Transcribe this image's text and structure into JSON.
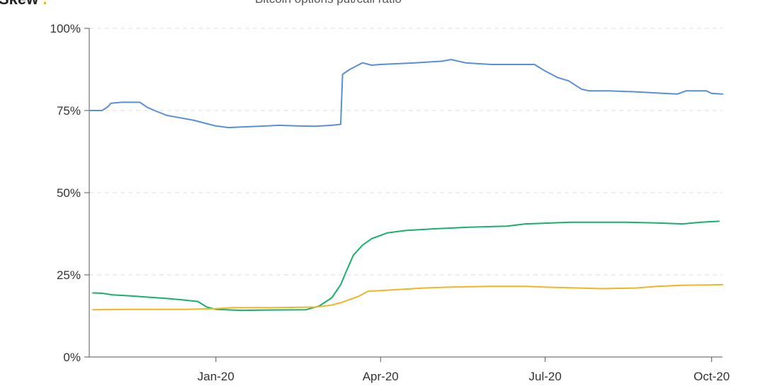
{
  "header": {
    "logo": "Skew.",
    "logo_accent_color": "#f5b800",
    "title": "Bitcoin options put/call ratio"
  },
  "chart_data": {
    "type": "line",
    "title": "",
    "xlabel": "",
    "ylabel": "",
    "x_start": "2019-10-23",
    "x_end": "2020-10-07",
    "ylim": [
      0,
      100
    ],
    "y_ticks": [
      0,
      25,
      50,
      75,
      100
    ],
    "y_tick_labels": [
      "0%",
      "25%",
      "50%",
      "75%",
      "100%"
    ],
    "x_ticks": [
      "2020-01-01",
      "2020-04-01",
      "2020-07-01",
      "2020-10-01"
    ],
    "x_tick_labels": [
      "Jan-20",
      "Apr-20",
      "Jul-20",
      "Oct-20"
    ],
    "grid": "horizontal-dashed",
    "legend": "none",
    "series": [
      {
        "color": "#5b8ed9",
        "points": [
          [
            "2019-10-23",
            75
          ],
          [
            "2019-10-30",
            75
          ],
          [
            "2019-11-02",
            76
          ],
          [
            "2019-11-04",
            77.2
          ],
          [
            "2019-11-10",
            77.5
          ],
          [
            "2019-11-20",
            77.5
          ],
          [
            "2019-11-24",
            76
          ],
          [
            "2019-11-28",
            75
          ],
          [
            "2019-12-05",
            73.5
          ],
          [
            "2019-12-12",
            72.8
          ],
          [
            "2019-12-20",
            72
          ],
          [
            "2019-12-27",
            71
          ],
          [
            "2020-01-01",
            70.3
          ],
          [
            "2020-01-08",
            69.8
          ],
          [
            "2020-01-15",
            70
          ],
          [
            "2020-01-25",
            70.2
          ],
          [
            "2020-02-05",
            70.5
          ],
          [
            "2020-02-15",
            70.3
          ],
          [
            "2020-02-25",
            70.2
          ],
          [
            "2020-03-05",
            70.5
          ],
          [
            "2020-03-10",
            70.8
          ],
          [
            "2020-03-11",
            86
          ],
          [
            "2020-03-15",
            87.5
          ],
          [
            "2020-03-22",
            89.5
          ],
          [
            "2020-03-27",
            88.8
          ],
          [
            "2020-04-01",
            89
          ],
          [
            "2020-04-20",
            89.5
          ],
          [
            "2020-05-05",
            90
          ],
          [
            "2020-05-10",
            90.5
          ],
          [
            "2020-05-18",
            89.5
          ],
          [
            "2020-06-01",
            89
          ],
          [
            "2020-06-15",
            89
          ],
          [
            "2020-06-25",
            89
          ],
          [
            "2020-07-01",
            87
          ],
          [
            "2020-07-08",
            85
          ],
          [
            "2020-07-14",
            84
          ],
          [
            "2020-07-21",
            81.5
          ],
          [
            "2020-07-25",
            81
          ],
          [
            "2020-08-05",
            81
          ],
          [
            "2020-08-20",
            80.7
          ],
          [
            "2020-09-05",
            80.2
          ],
          [
            "2020-09-12",
            80
          ],
          [
            "2020-09-17",
            81
          ],
          [
            "2020-09-28",
            81
          ],
          [
            "2020-10-01",
            80.2
          ],
          [
            "2020-10-07",
            80
          ]
        ]
      },
      {
        "color": "#18b06a",
        "points": [
          [
            "2019-10-25",
            19.5
          ],
          [
            "2019-10-30",
            19.4
          ],
          [
            "2019-11-05",
            18.9
          ],
          [
            "2019-11-15",
            18.6
          ],
          [
            "2019-11-25",
            18.2
          ],
          [
            "2019-12-05",
            17.8
          ],
          [
            "2019-12-15",
            17.3
          ],
          [
            "2019-12-22",
            16.9
          ],
          [
            "2019-12-27",
            15.2
          ],
          [
            "2020-01-01",
            14.5
          ],
          [
            "2020-01-15",
            14.2
          ],
          [
            "2020-02-01",
            14.3
          ],
          [
            "2020-02-20",
            14.4
          ],
          [
            "2020-02-27",
            15.5
          ],
          [
            "2020-03-05",
            18
          ],
          [
            "2020-03-10",
            22
          ],
          [
            "2020-03-13",
            26
          ],
          [
            "2020-03-17",
            31
          ],
          [
            "2020-03-22",
            34
          ],
          [
            "2020-03-27",
            36
          ],
          [
            "2020-04-05",
            37.8
          ],
          [
            "2020-04-15",
            38.5
          ],
          [
            "2020-05-01",
            39
          ],
          [
            "2020-05-20",
            39.5
          ],
          [
            "2020-06-10",
            39.8
          ],
          [
            "2020-06-20",
            40.5
          ],
          [
            "2020-07-15",
            41
          ],
          [
            "2020-08-15",
            41
          ],
          [
            "2020-09-01",
            40.8
          ],
          [
            "2020-09-15",
            40.5
          ],
          [
            "2020-09-25",
            41
          ],
          [
            "2020-10-05",
            41.3
          ]
        ]
      },
      {
        "color": "#f0b429",
        "points": [
          [
            "2019-10-25",
            14.4
          ],
          [
            "2019-11-15",
            14.5
          ],
          [
            "2019-12-15",
            14.5
          ],
          [
            "2020-01-01",
            14.7
          ],
          [
            "2020-01-10",
            15
          ],
          [
            "2020-02-01",
            15
          ],
          [
            "2020-02-25",
            15.2
          ],
          [
            "2020-03-05",
            15.8
          ],
          [
            "2020-03-10",
            16.5
          ],
          [
            "2020-03-15",
            17.5
          ],
          [
            "2020-03-20",
            18.5
          ],
          [
            "2020-03-25",
            20
          ],
          [
            "2020-04-10",
            20.5
          ],
          [
            "2020-04-25",
            21
          ],
          [
            "2020-05-10",
            21.3
          ],
          [
            "2020-06-01",
            21.5
          ],
          [
            "2020-06-20",
            21.5
          ],
          [
            "2020-07-05",
            21.2
          ],
          [
            "2020-07-20",
            21
          ],
          [
            "2020-08-01",
            20.8
          ],
          [
            "2020-08-20",
            21
          ],
          [
            "2020-09-01",
            21.5
          ],
          [
            "2020-09-15",
            21.8
          ],
          [
            "2020-10-07",
            22
          ]
        ]
      }
    ]
  }
}
